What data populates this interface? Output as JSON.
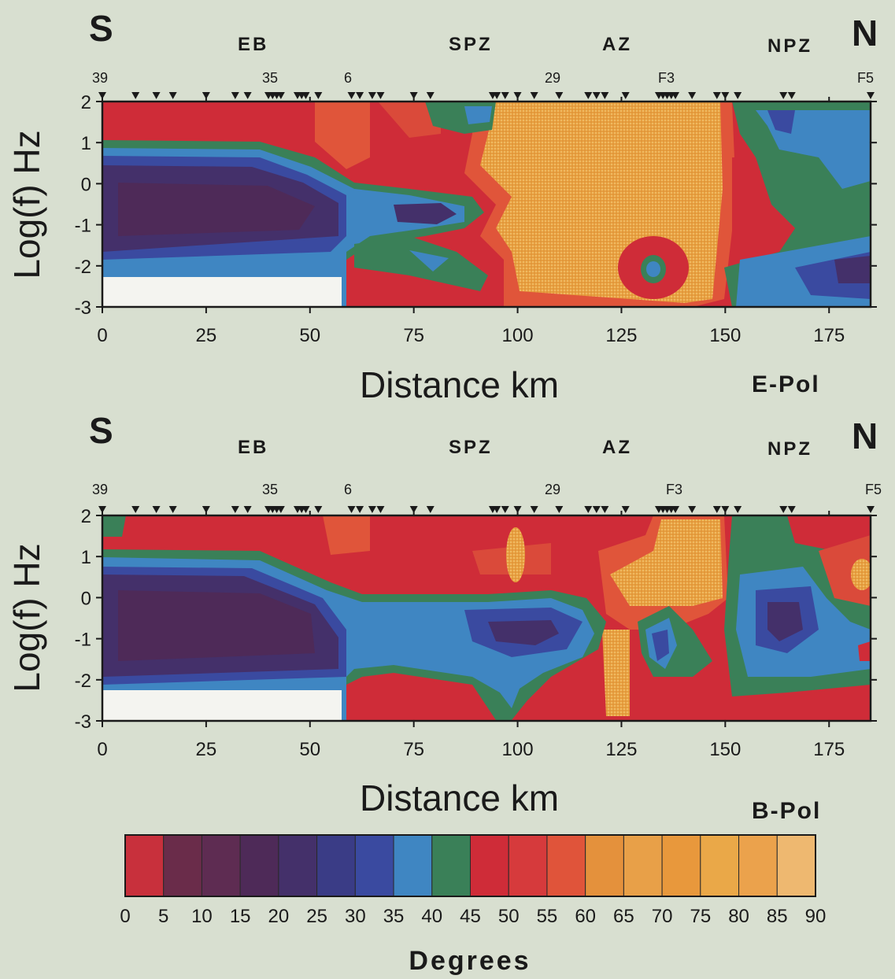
{
  "chart_data": {
    "type": "heatmap",
    "colorbar": {
      "title": "Degrees",
      "ticks": [
        "0",
        "5",
        "10",
        "15",
        "20",
        "25",
        "30",
        "35",
        "40",
        "45",
        "50",
        "55",
        "60",
        "65",
        "70",
        "75",
        "80",
        "85",
        "90"
      ],
      "colors": [
        "#c8303c",
        "#6a2c4a",
        "#5e2c52",
        "#4e2a58",
        "#44306a",
        "#3a3c86",
        "#3a4aa0",
        "#3f86c2",
        "#3a8058",
        "#cf2c38",
        "#d63a3c",
        "#e0543a",
        "#e4913c",
        "#e8a048",
        "#e8983c",
        "#eaa848",
        "#eba24c",
        "#eeb870"
      ]
    },
    "panels": [
      {
        "polarization": "E-Pol",
        "left_label": "S",
        "right_label": "N",
        "zones": [
          {
            "label": "EB",
            "x": 40
          },
          {
            "label": "SPZ",
            "x": 90
          },
          {
            "label": "AZ",
            "x": 125
          },
          {
            "label": "NPZ",
            "x": 165
          }
        ],
        "site_labels": [
          {
            "label": "39",
            "x": 0
          },
          {
            "label": "35",
            "x": 41
          },
          {
            "label": "6",
            "x": 60
          },
          {
            "label": "29",
            "x": 110
          },
          {
            "label": "F3",
            "x": 138
          },
          {
            "label": "F5",
            "x": 185
          }
        ],
        "stations_km": [
          0,
          8,
          13,
          17,
          25,
          32,
          35,
          40,
          41,
          42,
          43,
          47,
          48,
          49,
          52,
          60,
          62,
          65,
          67,
          75,
          79,
          94,
          95,
          97,
          100,
          104,
          110,
          117,
          119,
          121,
          126,
          134,
          135,
          136,
          137,
          138,
          142,
          148,
          150,
          153,
          164,
          166,
          185
        ],
        "xlabel": "Distance km",
        "ylabel": "Log(f) Hz",
        "xlim": [
          0,
          185
        ],
        "ylim": [
          -3,
          2
        ],
        "xticks": [
          "0",
          "25",
          "50",
          "75",
          "100",
          "125",
          "150",
          "175"
        ],
        "yticks": [
          "2",
          "1",
          "0",
          "-1",
          "-2",
          "-3"
        ]
      },
      {
        "polarization": "B-Pol",
        "left_label": "S",
        "right_label": "N",
        "zones": [
          {
            "label": "EB",
            "x": 40
          },
          {
            "label": "SPZ",
            "x": 90
          },
          {
            "label": "AZ",
            "x": 125
          },
          {
            "label": "NPZ",
            "x": 165
          }
        ],
        "site_labels": [
          {
            "label": "39",
            "x": 0
          },
          {
            "label": "35",
            "x": 41
          },
          {
            "label": "6",
            "x": 60
          },
          {
            "label": "29",
            "x": 110
          },
          {
            "label": "F3",
            "x": 138
          },
          {
            "label": "F5",
            "x": 185
          }
        ],
        "stations_km": [
          0,
          8,
          13,
          17,
          25,
          32,
          35,
          40,
          41,
          42,
          43,
          47,
          48,
          49,
          52,
          60,
          62,
          65,
          67,
          75,
          79,
          94,
          95,
          97,
          100,
          104,
          110,
          117,
          119,
          121,
          126,
          134,
          135,
          136,
          137,
          138,
          142,
          148,
          150,
          153,
          164,
          166,
          185
        ],
        "xlabel": "Distance km",
        "ylabel": "Log(f) Hz",
        "xlim": [
          0,
          185
        ],
        "ylim": [
          -3,
          2
        ],
        "xticks": [
          "0",
          "25",
          "50",
          "75",
          "100",
          "125",
          "150",
          "175"
        ],
        "yticks": [
          "2",
          "1",
          "0",
          "-1",
          "-2",
          "-3"
        ]
      }
    ]
  }
}
